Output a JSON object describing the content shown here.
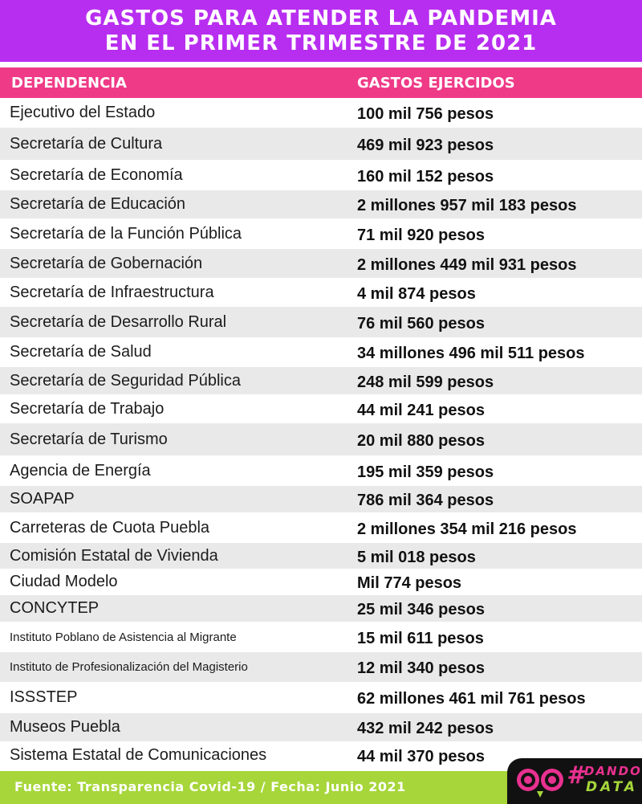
{
  "title": {
    "line1": "GASTOS PARA ATENDER LA PANDEMIA",
    "line2": "EN EL PRIMER TRIMESTRE DE 2021"
  },
  "table": {
    "headers": {
      "dependencia": "DEPENDENCIA",
      "gastos": "GASTOS EJERCIDOS"
    },
    "rows": [
      {
        "dependencia": "Ejecutivo del Estado",
        "gastos": "100 mil 756 pesos"
      },
      {
        "dependencia": "Secretaría de Cultura",
        "gastos": "469 mil 923 pesos"
      },
      {
        "dependencia": "Secretaría de Economía",
        "gastos": "160 mil 152 pesos"
      },
      {
        "dependencia": "Secretaría de Educación",
        "gastos": "2 millones 957 mil 183 pesos"
      },
      {
        "dependencia": "Secretaría de la Función Pública",
        "gastos": "71 mil 920 pesos"
      },
      {
        "dependencia": "Secretaría de Gobernación",
        "gastos": "2 millones 449 mil 931 pesos"
      },
      {
        "dependencia": "Secretaría de Infraestructura",
        "gastos": "4 mil 874 pesos"
      },
      {
        "dependencia": "Secretaría de Desarrollo Rural",
        "gastos": "76 mil 560 pesos"
      },
      {
        "dependencia": "Secretaría de Salud",
        "gastos": "34 millones 496 mil 511 pesos"
      },
      {
        "dependencia": "Secretaría de Seguridad Pública",
        "gastos": "248 mil 599 pesos"
      },
      {
        "dependencia": "Secretaría de Trabajo",
        "gastos": "44 mil 241 pesos"
      },
      {
        "dependencia": "Secretaría de Turismo",
        "gastos": "20 mil 880 pesos"
      },
      {
        "dependencia": "Agencia de Energía",
        "gastos": "195 mil 359 pesos"
      },
      {
        "dependencia": "SOAPAP",
        "gastos": "786 mil 364 pesos"
      },
      {
        "dependencia": "Carreteras de Cuota Puebla",
        "gastos": "2 millones 354 mil 216 pesos"
      },
      {
        "dependencia": "Comisión Estatal de Vivienda",
        "gastos": "5 mil 018 pesos"
      },
      {
        "dependencia": "Ciudad Modelo",
        "gastos": "Mil 774 pesos"
      },
      {
        "dependencia": "CONCYTEP",
        "gastos": "25 mil 346 pesos"
      },
      {
        "dependencia": "Instituto Poblano de Asistencia al Migrante",
        "gastos": "15 mil 611 pesos"
      },
      {
        "dependencia": "Instituto de Profesionalización del Magisterio",
        "gastos": "12 mil 340 pesos"
      },
      {
        "dependencia": "ISSSTEP",
        "gastos": "62 millones 461 mil 761 pesos"
      },
      {
        "dependencia": "Museos Puebla",
        "gastos": "432 mil 242 pesos"
      },
      {
        "dependencia": "Sistema Estatal de Comunicaciones",
        "gastos": "44 mil 370 pesos"
      }
    ]
  },
  "footer": {
    "text": "Fuente: Transparencia Covid-19  / Fecha: Junio 2021"
  },
  "logo": {
    "hash": "#",
    "word1": "DANDO",
    "word2": "DATA",
    "icon": "owl-eyes-icon"
  },
  "colors": {
    "title_bg": "#b82ef0",
    "header_bg": "#ef3a87",
    "row_shade": "#e9e9e9",
    "footer_bg": "#a6d63a",
    "logo_pink": "#e8318f"
  }
}
